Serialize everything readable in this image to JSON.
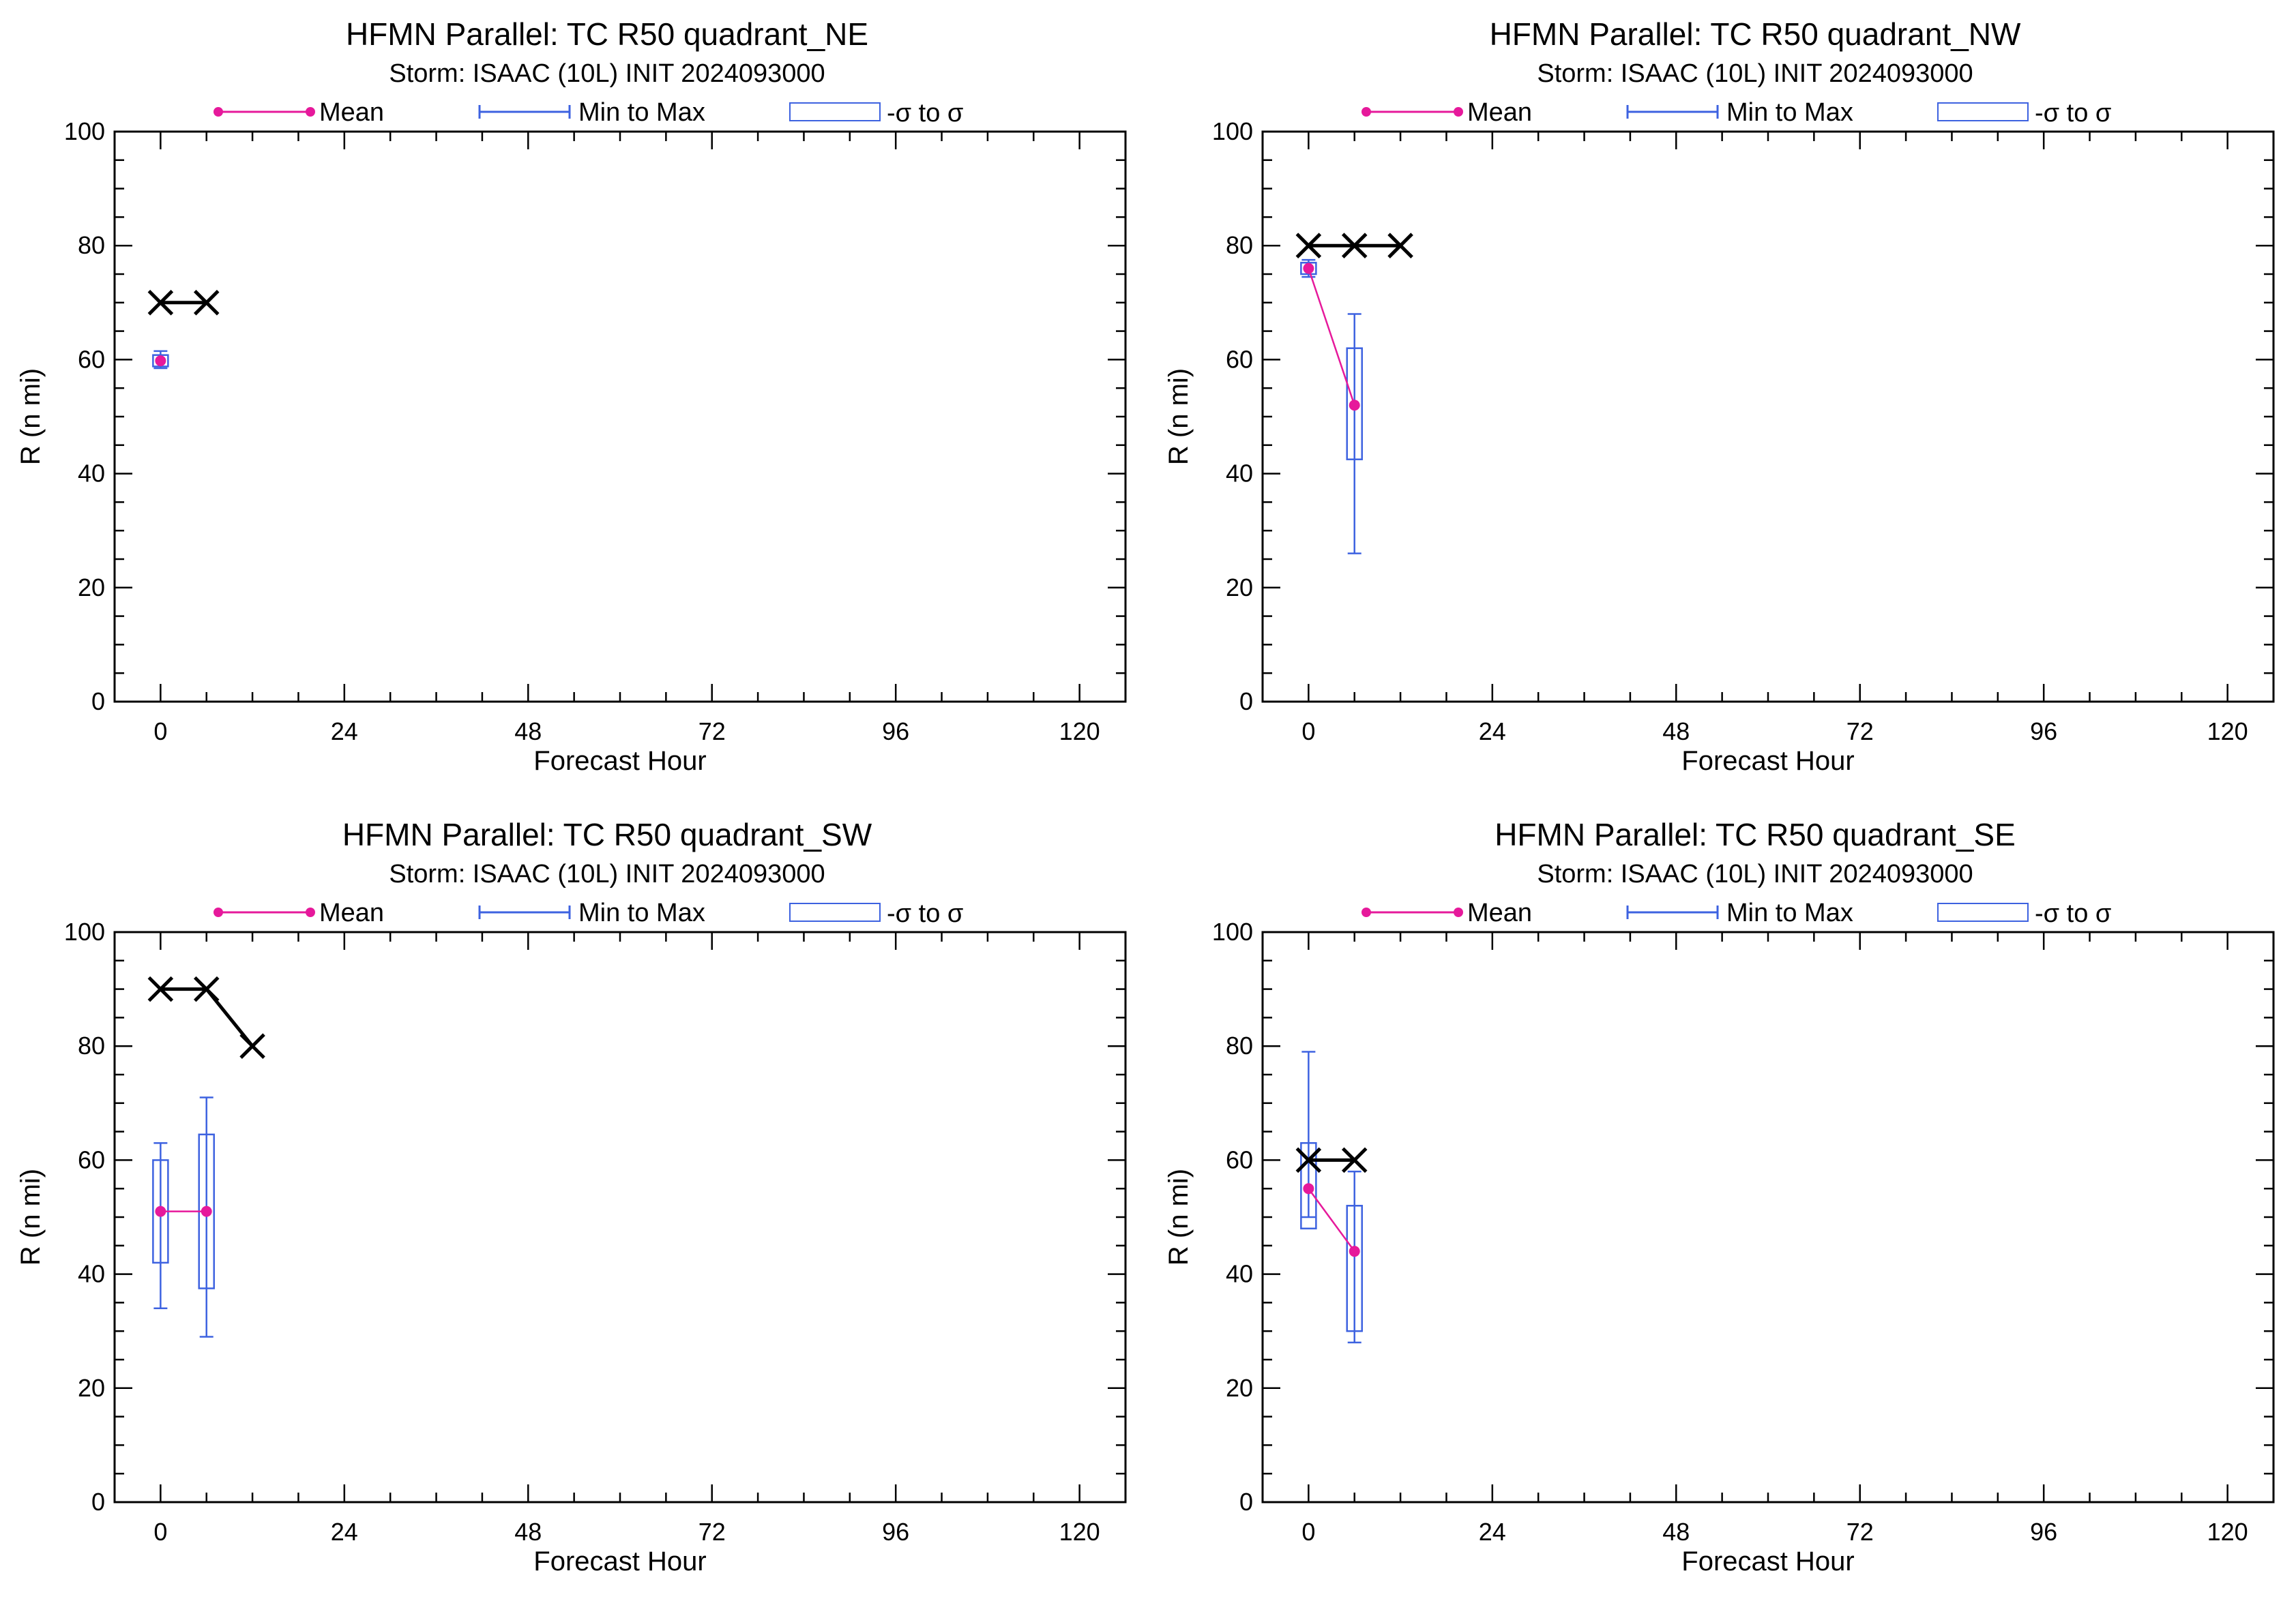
{
  "legend": {
    "mean": "Mean",
    "minmax": "Min to Max",
    "sigma": "-σ to σ"
  },
  "colors": {
    "mean": "#e6199b",
    "range": "#3d62e0",
    "best_track": "#000000"
  },
  "chart_data": [
    {
      "type": "line",
      "title": "HFMN Parallel: TC  R50 quadrant_NE",
      "subtitle": "Storm: ISAAC (10L) INIT 2024093000",
      "xlabel": "Forecast Hour",
      "ylabel": "R (n mi)",
      "xlim": [
        -6,
        126
      ],
      "ylim": [
        0,
        100
      ],
      "xticks": [
        0,
        24,
        48,
        72,
        96,
        120
      ],
      "yticks": [
        0,
        20,
        40,
        60,
        80,
        100
      ],
      "legend_position": "top",
      "best_track": {
        "x": [
          0,
          6
        ],
        "y": [
          70,
          70
        ]
      },
      "mean": {
        "x": [
          0
        ],
        "y": [
          59.8
        ]
      },
      "min": [
        58.5
      ],
      "max": [
        61.5
      ],
      "sigma_low": [
        58.8
      ],
      "sigma_high": [
        60.8
      ]
    },
    {
      "type": "line",
      "title": "HFMN Parallel: TC  R50 quadrant_NW",
      "subtitle": "Storm: ISAAC (10L) INIT 2024093000",
      "xlabel": "Forecast Hour",
      "ylabel": "R (n mi)",
      "xlim": [
        -6,
        126
      ],
      "ylim": [
        0,
        100
      ],
      "xticks": [
        0,
        24,
        48,
        72,
        96,
        120
      ],
      "yticks": [
        0,
        20,
        40,
        60,
        80,
        100
      ],
      "legend_position": "top",
      "best_track": {
        "x": [
          0,
          6,
          12
        ],
        "y": [
          80,
          80,
          80
        ]
      },
      "mean": {
        "x": [
          0,
          6
        ],
        "y": [
          76,
          52
        ]
      },
      "min": [
        74.5,
        26
      ],
      "max": [
        77.5,
        68
      ],
      "sigma_low": [
        75,
        42.5
      ],
      "sigma_high": [
        77,
        62
      ]
    },
    {
      "type": "line",
      "title": "HFMN Parallel: TC  R50 quadrant_SW",
      "subtitle": "Storm: ISAAC (10L) INIT 2024093000",
      "xlabel": "Forecast Hour",
      "ylabel": "R (n mi)",
      "xlim": [
        -6,
        126
      ],
      "ylim": [
        0,
        100
      ],
      "xticks": [
        0,
        24,
        48,
        72,
        96,
        120
      ],
      "yticks": [
        0,
        20,
        40,
        60,
        80,
        100
      ],
      "legend_position": "top",
      "best_track": {
        "x": [
          0,
          6,
          12
        ],
        "y": [
          90,
          90,
          80
        ]
      },
      "mean": {
        "x": [
          0,
          6
        ],
        "y": [
          51,
          51
        ]
      },
      "min": [
        34,
        29
      ],
      "max": [
        63,
        71
      ],
      "sigma_low": [
        42,
        37.5
      ],
      "sigma_high": [
        60,
        64.5
      ]
    },
    {
      "type": "line",
      "title": "HFMN Parallel: TC  R50 quadrant_SE",
      "subtitle": "Storm: ISAAC (10L) INIT 2024093000",
      "xlabel": "Forecast Hour",
      "ylabel": "R (n mi)",
      "xlim": [
        -6,
        126
      ],
      "ylim": [
        0,
        100
      ],
      "xticks": [
        0,
        24,
        48,
        72,
        96,
        120
      ],
      "yticks": [
        0,
        20,
        40,
        60,
        80,
        100
      ],
      "legend_position": "top",
      "best_track": {
        "x": [
          0,
          6
        ],
        "y": [
          60,
          60
        ]
      },
      "mean": {
        "x": [
          0,
          6
        ],
        "y": [
          55,
          44
        ]
      },
      "min": [
        50,
        28
      ],
      "max": [
        79,
        58
      ],
      "sigma_low": [
        48,
        30
      ],
      "sigma_high": [
        63,
        52
      ]
    }
  ]
}
